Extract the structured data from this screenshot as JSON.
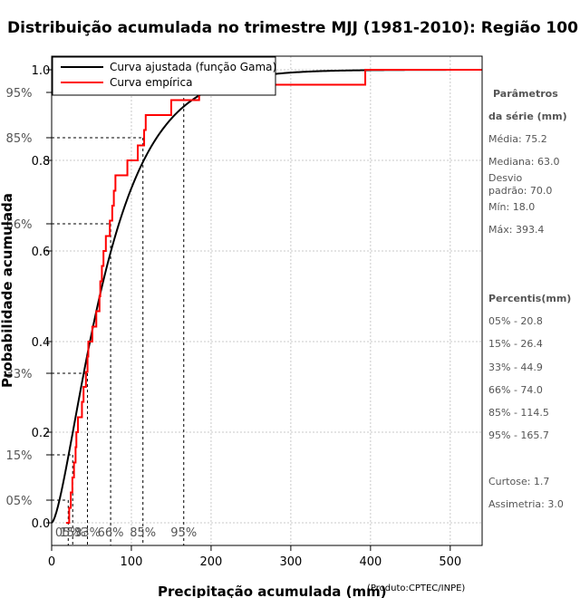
{
  "chart_data": {
    "type": "line",
    "title": "Distribuição acumulada no trimestre MJJ (1981-2010): Região 100",
    "xlabel": "Precipitação acumulada (mm)",
    "ylabel": "Probabilidade acumulada",
    "credit": "(Produto:CPTEC/INPE)",
    "xlim": [
      0,
      540
    ],
    "ylim": [
      -0.05,
      1.03
    ],
    "x_ticks": [
      0,
      100,
      200,
      300,
      400,
      500
    ],
    "y_ticks": [
      0.0,
      0.2,
      0.4,
      0.6,
      0.8,
      1.0
    ],
    "y_tick_labels": [
      "0.0",
      "0.2",
      "0.4",
      "0.6",
      "0.8",
      "1.0"
    ],
    "pct_marks": [
      {
        "label": "05%",
        "p": 0.05,
        "x": 20.8
      },
      {
        "label": "15%",
        "p": 0.15,
        "x": 26.4
      },
      {
        "label": "33%",
        "p": 0.33,
        "x": 44.9
      },
      {
        "label": "66%",
        "p": 0.66,
        "x": 74.0
      },
      {
        "label": "85%",
        "p": 0.85,
        "x": 114.5
      },
      {
        "label": "95%",
        "p": 0.95,
        "x": 165.7
      }
    ],
    "x_pct_labels": [
      {
        "label": "05%",
        "x": 20.8
      },
      {
        "label": "15%",
        "x": 26.4
      },
      {
        "label": "33%",
        "x": 44.9
      },
      {
        "label": "66%",
        "x": 74.0
      },
      {
        "label": "85%",
        "x": 114.5
      },
      {
        "label": "95%",
        "x": 165.7
      }
    ],
    "gamma": {
      "shape": 1.6,
      "scale": 47
    },
    "series": [
      {
        "name": "Curva ajustada (função Gama)",
        "color": "#000000"
      },
      {
        "name": "Curva empírica",
        "color": "#ff0000",
        "steps": [
          [
            18.0,
            0.0
          ],
          [
            22.0,
            0.033
          ],
          [
            24.0,
            0.067
          ],
          [
            26.0,
            0.1
          ],
          [
            28.0,
            0.133
          ],
          [
            30.0,
            0.167
          ],
          [
            31.0,
            0.2
          ],
          [
            33.0,
            0.233
          ],
          [
            38.0,
            0.267
          ],
          [
            40.0,
            0.3
          ],
          [
            43.0,
            0.333
          ],
          [
            45.0,
            0.367
          ],
          [
            46.0,
            0.4
          ],
          [
            51.0,
            0.433
          ],
          [
            56.0,
            0.467
          ],
          [
            60.0,
            0.5
          ],
          [
            61.0,
            0.533
          ],
          [
            63.0,
            0.567
          ],
          [
            65.0,
            0.6
          ],
          [
            68.0,
            0.633
          ],
          [
            73.0,
            0.667
          ],
          [
            76.0,
            0.7
          ],
          [
            78.0,
            0.733
          ],
          [
            80.0,
            0.767
          ],
          [
            95.0,
            0.8
          ],
          [
            108.0,
            0.833
          ],
          [
            116.0,
            0.867
          ],
          [
            118.0,
            0.9
          ],
          [
            150.0,
            0.933
          ],
          [
            185.0,
            0.967
          ],
          [
            393.4,
            1.0
          ]
        ],
        "end_x": 540
      }
    ]
  },
  "legend": [
    "Curva ajustada (função Gama)",
    "Curva empírica"
  ],
  "stats": {
    "heading1": "Parâmetros",
    "heading2": "da série (mm)",
    "media": "Média: 75.2",
    "mediana": "Mediana: 63.0",
    "desvio1": "Desvio",
    "desvio2": "padrão: 70.0",
    "min": "Mín: 18.0",
    "max": "Máx: 393.4"
  },
  "percentis": {
    "heading": "Percentis(mm)",
    "items": [
      "05% - 20.8",
      "15% - 26.4",
      "33% - 44.9",
      "66% - 74.0",
      "85% - 114.5",
      "95% - 165.7"
    ]
  },
  "extra": {
    "curtose": "Curtose: 1.7",
    "assimetria": "Assimetria: 3.0"
  }
}
